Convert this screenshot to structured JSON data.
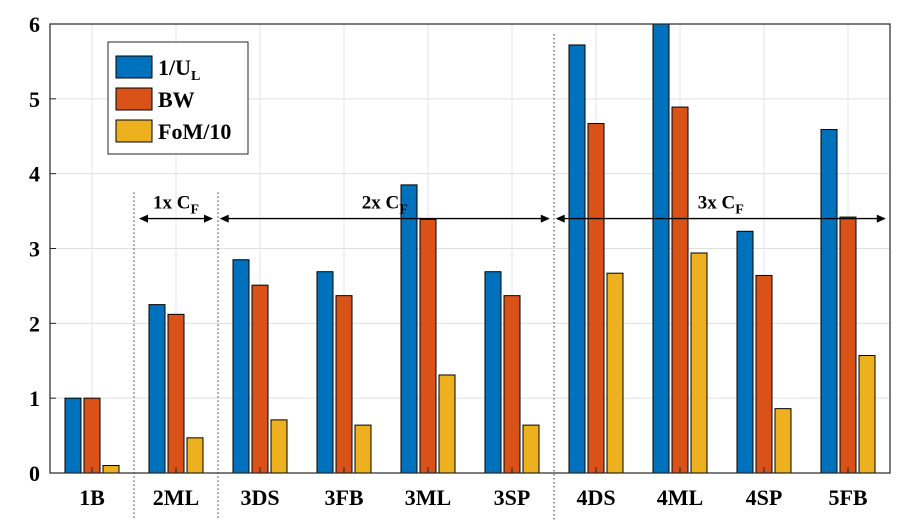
{
  "chart_data": {
    "type": "bar",
    "title": "",
    "xlabel": "",
    "ylabel": "",
    "ylim": [
      0,
      6
    ],
    "yticks": [
      "0",
      "1",
      "2",
      "3",
      "4",
      "5",
      "6"
    ],
    "grid": true,
    "legend_position": "top-left",
    "categories": [
      "1B",
      "2ML",
      "3DS",
      "3FB",
      "3ML",
      "3SP",
      "4DS",
      "4ML",
      "4SP",
      "5FB"
    ],
    "series": [
      {
        "name": "1/U",
        "subscript": "L",
        "color": "#0072BD",
        "values": [
          1.0,
          2.25,
          2.85,
          2.69,
          3.85,
          2.69,
          5.72,
          6.0,
          3.23,
          4.59
        ]
      },
      {
        "name": "BW",
        "subscript": "",
        "color": "#D95319",
        "values": [
          1.0,
          2.12,
          2.51,
          2.37,
          3.39,
          2.37,
          4.67,
          4.89,
          2.64,
          3.42
        ]
      },
      {
        "name": "FoM/10",
        "subscript": "",
        "color": "#EDB120",
        "values": [
          0.1,
          0.47,
          0.71,
          0.64,
          1.31,
          0.64,
          2.67,
          2.94,
          0.86,
          1.57
        ]
      }
    ],
    "annotations": [
      {
        "text": "1x C",
        "subscript": "F",
        "from_index": 1,
        "to_index": 1,
        "y": 3.4
      },
      {
        "text": "2x C",
        "subscript": "F",
        "from_index": 2,
        "to_index": 5,
        "y": 3.4
      },
      {
        "text": "3x C",
        "subscript": "F",
        "from_index": 6,
        "to_index": 9,
        "y": 3.4
      }
    ],
    "separators_after_index": [
      0,
      1,
      5
    ]
  }
}
